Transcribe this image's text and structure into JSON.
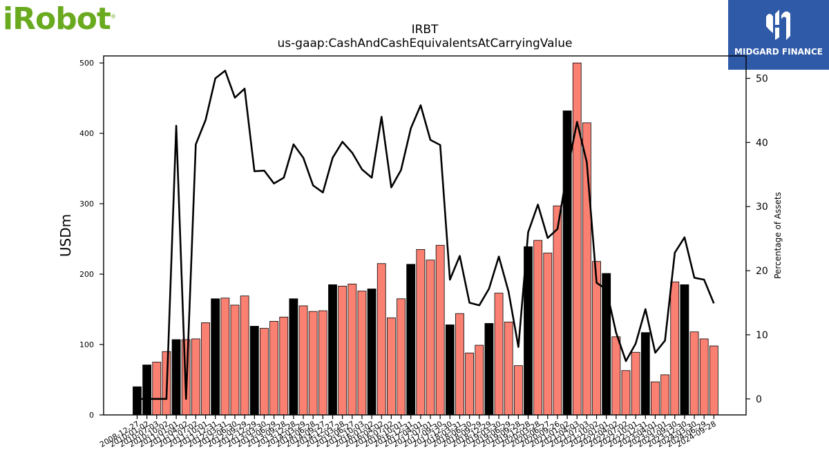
{
  "logos": {
    "left_text": "iRobot",
    "left_color": "#6aaa1f",
    "right_text": "MIDGARD FINANCE",
    "right_color": "#2f5aa8"
  },
  "chart_data": {
    "type": "bar",
    "title": "IRBT",
    "subtitle": "us-gaap:CashAndCashEquivalentsAtCarryingValue",
    "ylabel": "USDm",
    "y2label": "Percentage of Assets",
    "ylim": [
      0,
      510
    ],
    "y2lim": [
      -2.5,
      53.5
    ],
    "yticks": [
      0,
      100,
      200,
      300,
      400,
      500
    ],
    "y2ticks": [
      0,
      10,
      20,
      30,
      40,
      50
    ],
    "grid": false,
    "bar_colors": {
      "annual": "#000000",
      "quarterly": "#fa8072"
    },
    "line_color": "#000000",
    "categories": [
      "2008-12-27",
      "2010-01-02",
      "2010-07-03",
      "2010-10-02",
      "2011-01-01",
      "2011-04-02",
      "2011-07-02",
      "2011-10-01",
      "2011-12-31",
      "2012-03-31",
      "2012-06-30",
      "2012-09-29",
      "2012-12-29",
      "2013-03-30",
      "2013-06-29",
      "2013-09-28",
      "2013-12-28",
      "2014-03-29",
      "2014-06-28",
      "2014-09-27",
      "2014-12-27",
      "2015-03-28",
      "2015-06-27",
      "2015-10-03",
      "2016-01-02",
      "2016-04-02",
      "2016-07-02",
      "2016-10-01",
      "2016-12-31",
      "2017-04-01",
      "2017-07-01",
      "2017-09-30",
      "2017-12-30",
      "2018-03-31",
      "2018-06-30",
      "2018-09-29",
      "2018-12-29",
      "2019-03-30",
      "2019-06-29",
      "2019-09-28",
      "2019-12-28",
      "2020-03-28",
      "2020-06-27",
      "2020-09-26",
      "2021-01-02",
      "2021-04-03",
      "2021-07-03",
      "2021-10-02",
      "2022-01-01",
      "2022-04-02",
      "2022-07-02",
      "2022-10-01",
      "2022-12-31",
      "2023-04-01",
      "2023-07-01",
      "2023-09-30",
      "2023-12-30",
      "2024-03-30",
      "2024-06-29",
      "2024-09-28"
    ],
    "bars": [
      40,
      71,
      75,
      90,
      107,
      107,
      108,
      131,
      165,
      166,
      156,
      169,
      126,
      123,
      133,
      139,
      165,
      155,
      147,
      148,
      185,
      183,
      186,
      176,
      179,
      215,
      138,
      165,
      214,
      235,
      220,
      241,
      128,
      144,
      88,
      99,
      130,
      173,
      132,
      70,
      239,
      248,
      230,
      297,
      432,
      500,
      415,
      218,
      201,
      111,
      63,
      89,
      117,
      47,
      57,
      189,
      185,
      118,
      108,
      98
    ],
    "annual_flags": [
      1,
      1,
      0,
      0,
      1,
      0,
      0,
      0,
      1,
      0,
      0,
      0,
      1,
      0,
      0,
      0,
      1,
      0,
      0,
      0,
      1,
      0,
      0,
      0,
      1,
      0,
      0,
      0,
      1,
      0,
      0,
      0,
      1,
      0,
      0,
      0,
      1,
      0,
      0,
      0,
      1,
      0,
      0,
      0,
      1,
      0,
      0,
      0,
      1,
      0,
      0,
      0,
      1,
      0,
      0,
      0,
      1,
      0,
      0,
      0
    ],
    "series": [
      {
        "name": "",
        "values": [
          0,
          0,
          0,
          0,
          42.6,
          0,
          39.7,
          43.5,
          50.0,
          51.2,
          47.0,
          48.4,
          35.5,
          35.6,
          33.6,
          34.5,
          39.7,
          37.6,
          33.3,
          32.2,
          37.6,
          40.1,
          38.4,
          35.8,
          34.5,
          44.0,
          33.0,
          35.7,
          42.2,
          45.8,
          40.4,
          39.6,
          18.6,
          22.3,
          15.0,
          14.6,
          17.2,
          22.2,
          16.7,
          8.1,
          26.0,
          30.3,
          25.1,
          26.5,
          35.5,
          43.2,
          36.9,
          18.1,
          17.1,
          10.3,
          5.9,
          8.6,
          14.0,
          7.2,
          9.1,
          22.8,
          25.2,
          18.9,
          18.6,
          14.9
        ]
      }
    ]
  }
}
